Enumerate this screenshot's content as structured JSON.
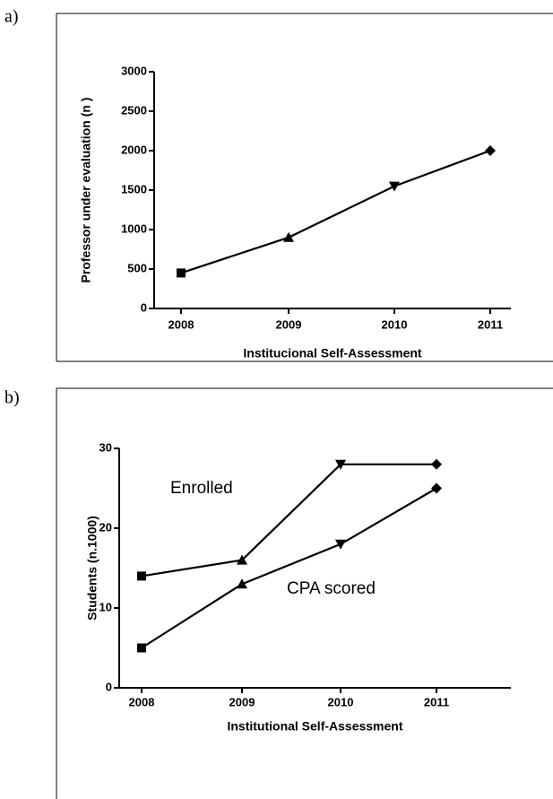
{
  "chart_data": [
    {
      "type": "line",
      "panel": "a)",
      "xlabel": "Institucional Self-Assessment",
      "ylabel": "Professor under evaluation (n )",
      "categories": [
        "2008",
        "2009",
        "2010",
        "2011"
      ],
      "values": [
        450,
        900,
        1550,
        2000
      ],
      "color": "#000000",
      "markers": [
        "square",
        "triangle-up",
        "triangle-down",
        "diamond"
      ],
      "ylim": [
        0,
        3000
      ],
      "yticks": [
        0,
        500,
        1000,
        1500,
        2000,
        2500,
        3000
      ]
    },
    {
      "type": "line",
      "panel": "b)",
      "xlabel": "Institutional Self-Assessment",
      "ylabel": "Students (n.1000)",
      "categories": [
        "2008",
        "2009",
        "2010",
        "2011"
      ],
      "series": [
        {
          "name": "Enrolled",
          "color": "#000000",
          "values": [
            14,
            16,
            28,
            28
          ]
        },
        {
          "name": "CPA scored",
          "color": "#000000",
          "values": [
            5,
            13,
            18,
            25
          ]
        }
      ],
      "markers": [
        "square",
        "triangle-up",
        "triangle-down",
        "diamond"
      ],
      "ylim": [
        0,
        30
      ],
      "yticks": [
        0,
        10,
        20,
        30
      ]
    }
  ]
}
